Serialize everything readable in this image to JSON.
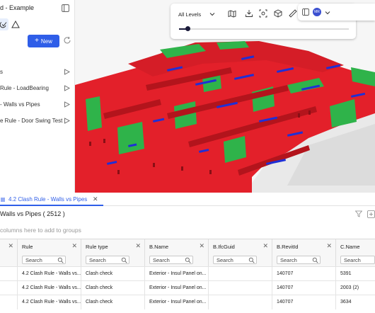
{
  "app": {
    "title": "d - Example"
  },
  "sidebar": {
    "new_label": "New",
    "rules": [
      {
        "label": "s"
      },
      {
        "label": "Rule - LoadBearing"
      },
      {
        "label": "- Walls vs Pipes"
      },
      {
        "label": "e Rule - Door Swing Test"
      }
    ]
  },
  "viewer": {
    "levels_label": "All Levels",
    "slider_value": 0.05,
    "avatar_initials": "MR",
    "colors": {
      "background": "#f6f6f6",
      "wall": "#e3202a",
      "green": "#2fb34a",
      "pipe": "#1f2fd6"
    }
  },
  "results": {
    "tab_label": "4.2 Clash Rule - Walls vs Pipes",
    "title": "Walls vs Pipes ( 2512 )",
    "group_hint": "columns here to add to groups",
    "search_placeholder": "Search",
    "columns": [
      "",
      "Rule",
      "Rule type",
      "B.Name",
      "B.IfcGuid",
      "B.RevitId",
      "C.Name"
    ],
    "rows": [
      [
        "",
        "4.2 Clash Rule - Walls vs...",
        "Clash check",
        "Exterior - Insul Panel on...",
        "",
        "140707",
        "5391"
      ],
      [
        "",
        "4.2 Clash Rule - Walls vs...",
        "Clash check",
        "Exterior - Insul Panel on...",
        "",
        "140707",
        "2003 (2)"
      ],
      [
        "",
        "4.2 Clash Rule - Walls vs...",
        "Clash check",
        "Exterior - Insul Panel on...",
        "",
        "140707",
        "3634"
      ]
    ]
  }
}
